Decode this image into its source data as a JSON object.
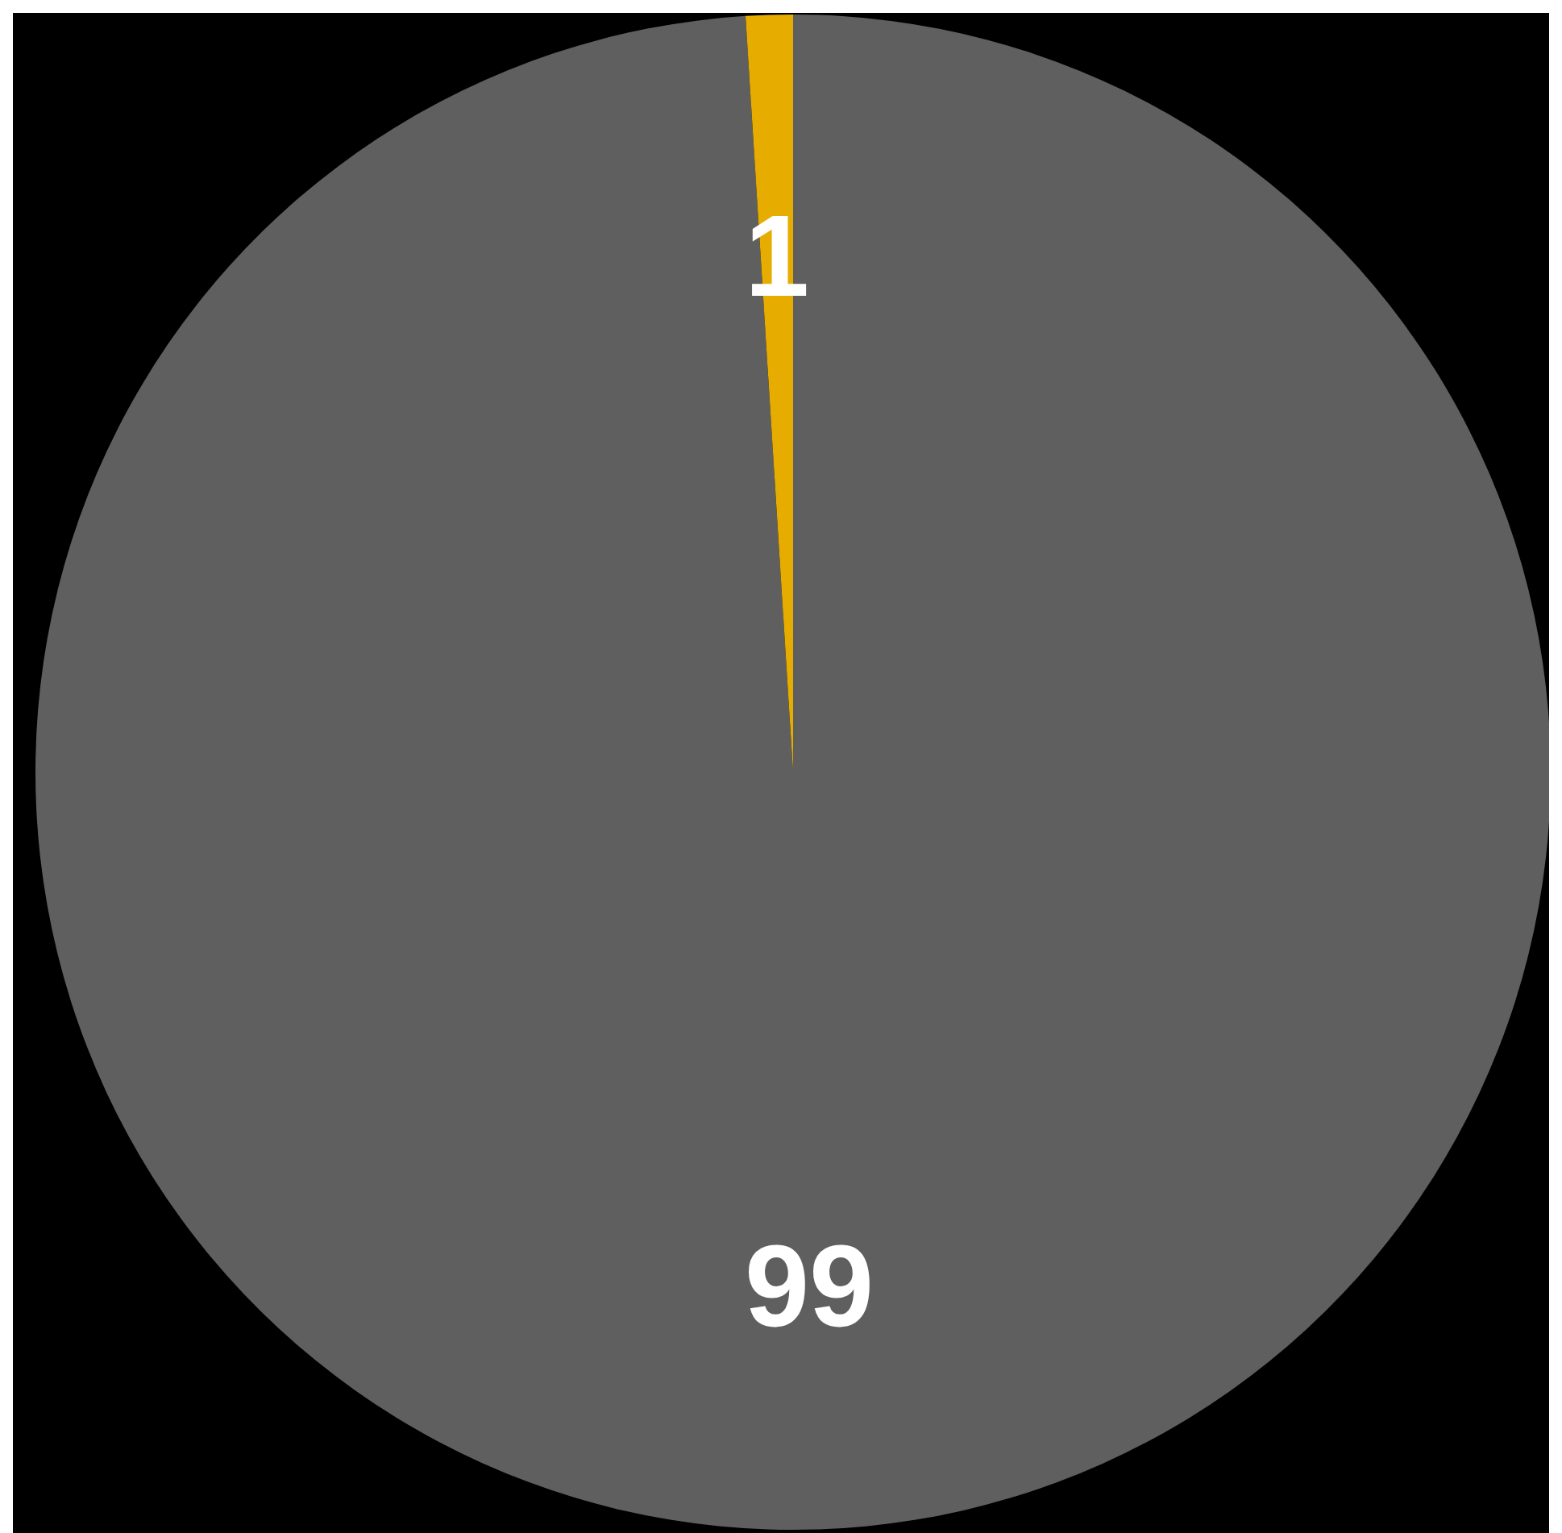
{
  "chart_data": {
    "type": "pie",
    "categories": [
      null,
      null
    ],
    "values": [
      99,
      1
    ],
    "colors": [
      "#5f5f5f",
      "#e6ad00"
    ],
    "data_labels": true
  }
}
